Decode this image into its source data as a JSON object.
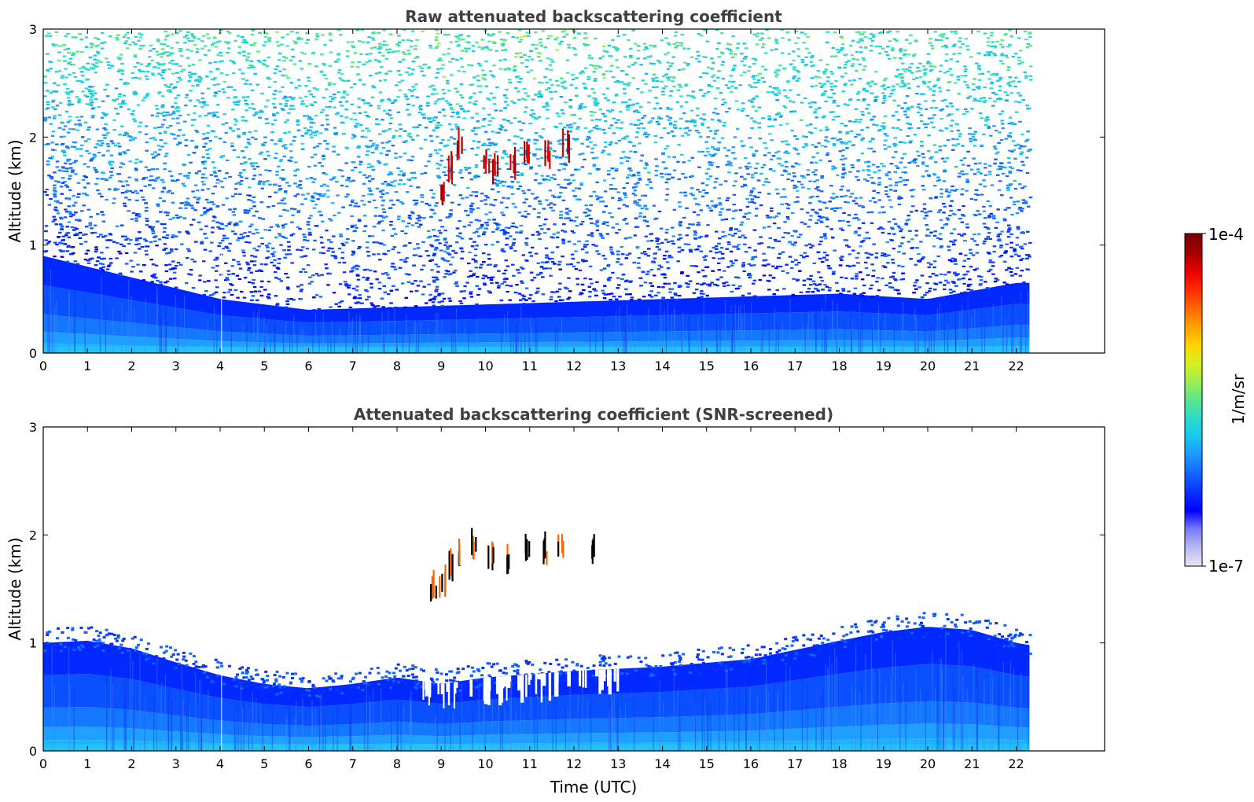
{
  "chart_data": [
    {
      "type": "heatmap",
      "title": "Raw attenuated backscattering coefficient",
      "xlabel": "",
      "ylabel": "Altitude (km)",
      "xlim": [
        0,
        24
      ],
      "ylim": [
        0,
        3
      ],
      "x_ticks": [
        "0",
        "1",
        "2",
        "3",
        "4",
        "5",
        "6",
        "7",
        "8",
        "9",
        "10",
        "11",
        "12",
        "13",
        "14",
        "15",
        "16",
        "17",
        "18",
        "19",
        "20",
        "21",
        "22"
      ],
      "y_ticks": [
        "0",
        "1",
        "2",
        "3"
      ],
      "data_end_hour": 22.3,
      "features": {
        "boundary_layer_top_km": [
          [
            0,
            0.9
          ],
          [
            2,
            0.7
          ],
          [
            4,
            0.5
          ],
          [
            6,
            0.4
          ],
          [
            10,
            0.45
          ],
          [
            14,
            0.5
          ],
          [
            18,
            0.55
          ],
          [
            20,
            0.5
          ],
          [
            22,
            0.65
          ]
        ],
        "cloud_patches": [
          [
            9.0,
            1.5
          ],
          [
            9.2,
            1.7
          ],
          [
            9.4,
            1.9
          ],
          [
            10.0,
            1.8
          ],
          [
            10.2,
            1.7
          ],
          [
            10.6,
            1.75
          ],
          [
            10.9,
            1.9
          ],
          [
            11.4,
            1.85
          ],
          [
            11.8,
            1.9
          ]
        ],
        "noise_level": "high above boundary layer"
      }
    },
    {
      "type": "heatmap",
      "title": "Attenuated backscattering coefficient (SNR-screened)",
      "xlabel": "Time (UTC)",
      "ylabel": "Altitude (km)",
      "xlim": [
        0,
        24
      ],
      "ylim": [
        0,
        3
      ],
      "x_ticks": [
        "0",
        "1",
        "2",
        "3",
        "4",
        "5",
        "6",
        "7",
        "8",
        "9",
        "10",
        "11",
        "12",
        "13",
        "14",
        "15",
        "16",
        "17",
        "18",
        "19",
        "20",
        "21",
        "22"
      ],
      "y_ticks": [
        "0",
        "1",
        "2",
        "3"
      ],
      "data_end_hour": 22.3,
      "features": {
        "boundary_layer_top_km": [
          [
            0,
            1.0
          ],
          [
            1,
            1.02
          ],
          [
            2,
            0.95
          ],
          [
            3,
            0.82
          ],
          [
            4,
            0.7
          ],
          [
            5,
            0.62
          ],
          [
            6,
            0.58
          ],
          [
            7,
            0.62
          ],
          [
            8,
            0.68
          ],
          [
            9,
            0.62
          ],
          [
            10,
            0.68
          ],
          [
            12,
            0.74
          ],
          [
            14,
            0.78
          ],
          [
            16,
            0.85
          ],
          [
            18,
            1.02
          ],
          [
            19,
            1.1
          ],
          [
            20,
            1.15
          ],
          [
            21,
            1.12
          ],
          [
            22,
            1.0
          ],
          [
            22.3,
            0.98
          ]
        ],
        "cloud_patches": [
          [
            8.8,
            1.5
          ],
          [
            9.0,
            1.55
          ],
          [
            9.2,
            1.7
          ],
          [
            9.4,
            1.85
          ],
          [
            9.7,
            1.9
          ],
          [
            10.1,
            1.8
          ],
          [
            10.5,
            1.75
          ],
          [
            10.9,
            1.9
          ],
          [
            11.3,
            1.85
          ],
          [
            11.7,
            1.9
          ],
          [
            12.4,
            1.85
          ]
        ],
        "noise_level": "screened"
      }
    }
  ],
  "colorbar": {
    "label": "1/m/sr",
    "max_label": "1e-4",
    "min_label": "1e-7",
    "scale": "log",
    "range": [
      1e-07,
      0.0001
    ],
    "colormap": [
      "#e6e6f5",
      "#b8b8f0",
      "#7b7bff",
      "#0000ff",
      "#0a32ff",
      "#1464ff",
      "#1e96ff",
      "#14c8f0",
      "#2bdcc8",
      "#5ae68c",
      "#9bef50",
      "#d8ef22",
      "#ffd200",
      "#ffa000",
      "#ff6400",
      "#ff2800",
      "#e60000",
      "#a00000",
      "#780000"
    ]
  }
}
